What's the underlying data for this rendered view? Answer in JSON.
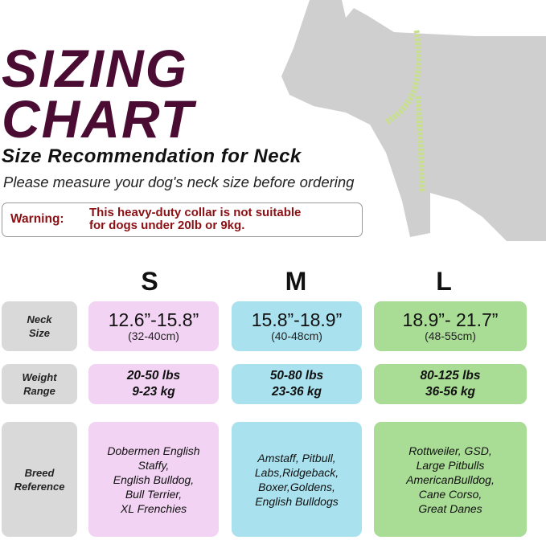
{
  "title_line1": "SIZING",
  "title_line2": "CHART",
  "subtitle": "Size Recommendation for Neck",
  "instruction": "Please measure your dog's neck size before ordering",
  "warning": {
    "label": "Warning:",
    "line1": "This heavy-duty collar is not suitable",
    "line2": "for dogs under 20lb or 9kg."
  },
  "colors": {
    "title": "#4a0c32",
    "warning": "#8b1014",
    "S": "#f2d3f3",
    "M": "#a9e1ee",
    "L": "#a9dc95",
    "label_bg": "#d9d9d9"
  },
  "sizes": [
    "S",
    "M",
    "L"
  ],
  "rows": {
    "neck": {
      "label1": "Neck",
      "label2": "Size",
      "S": [
        "12.6”-15.8”",
        "(32-40cm)"
      ],
      "M": [
        "15.8”-18.9”",
        "(40-48cm)"
      ],
      "L": [
        "18.9”- 21.7”",
        "(48-55cm)"
      ]
    },
    "weight": {
      "label1": "Weight",
      "label2": "Range",
      "S": [
        "20-50 lbs",
        "9-23 kg"
      ],
      "M": [
        "50-80 lbs",
        "23-36 kg"
      ],
      "L": [
        "80-125 lbs",
        "36-56 kg"
      ]
    },
    "breed": {
      "label1": "Breed",
      "label2": "Reference",
      "S": [
        "Dobermen English",
        "Staffy,",
        "English Bulldog,",
        "Bull Terrier,",
        "XL Frenchies"
      ],
      "M": [
        "Amstaff, Pitbull,",
        "Labs,Ridgeback,",
        "Boxer,Goldens,",
        "English Bulldogs"
      ],
      "L": [
        "Rottweiler, GSD,",
        "Large Pitbulls",
        "AmericanBulldog,",
        "Cane Corso,",
        "Great Danes"
      ]
    }
  }
}
